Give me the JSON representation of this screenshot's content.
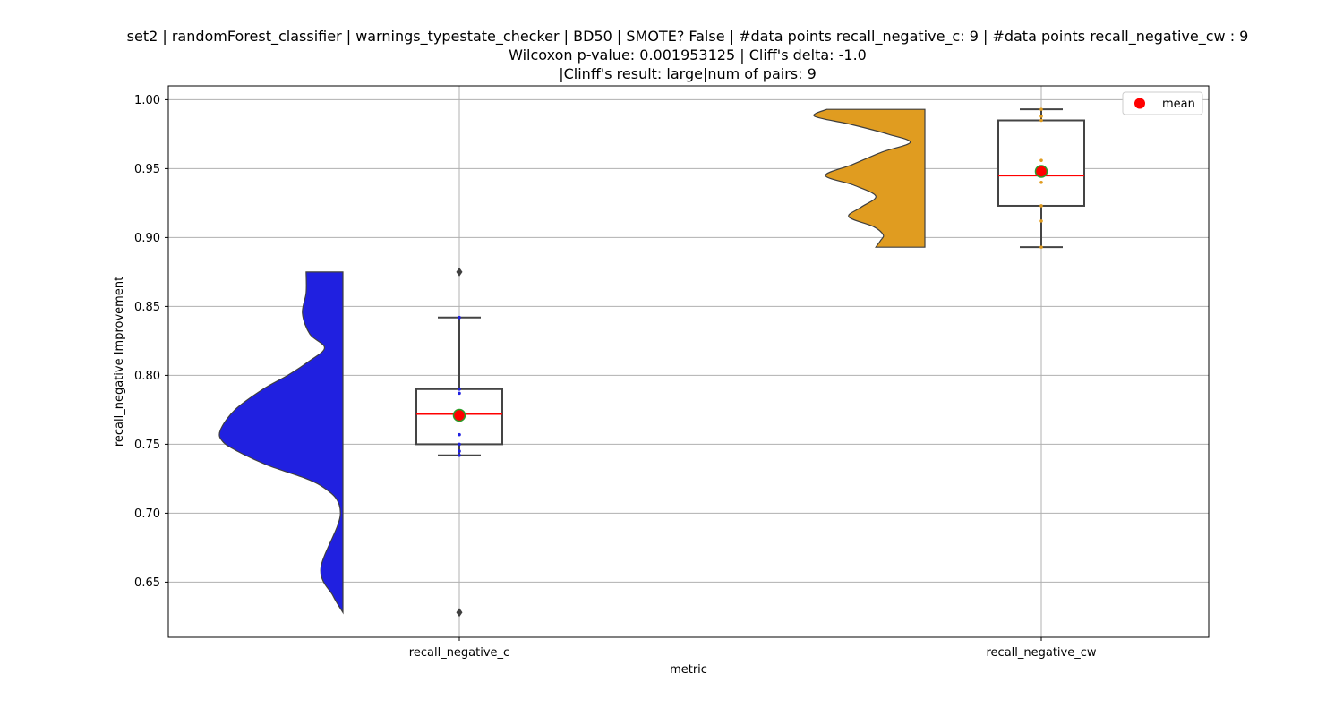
{
  "chart_data": {
    "type": "violin",
    "title_lines": [
      "set2 | randomForest_classifier | warnings_typestate_checker | BD50 | SMOTE? False | #data points recall_negative_c: 9 | #data points recall_negative_cw : 9",
      "Wilcoxon p-value: 0.001953125 | Cliff's delta: -1.0",
      "|Clinff's result: large|num of pairs: 9"
    ],
    "xlabel": "metric",
    "ylabel": "recall_negative Improvement",
    "ylim": [
      0.61,
      1.01
    ],
    "yticks": [
      "0.65",
      "0.70",
      "0.75",
      "0.80",
      "0.85",
      "0.90",
      "0.95",
      "1.00"
    ],
    "categories": [
      "recall_negative_c",
      "recall_negative_cw"
    ],
    "grid": true,
    "legend": {
      "placement": "top-right",
      "entries": [
        {
          "label": "mean",
          "color": "#ff0000"
        }
      ]
    },
    "series": [
      {
        "category": "recall_negative_c",
        "color": "#2020e0",
        "violin_range": [
          0.628,
          0.875
        ],
        "density": [
          [
            0.628,
            0.0
          ],
          [
            0.64,
            0.08
          ],
          [
            0.66,
            0.18
          ],
          [
            0.7,
            0.02
          ],
          [
            0.72,
            0.18
          ],
          [
            0.735,
            0.62
          ],
          [
            0.745,
            0.86
          ],
          [
            0.752,
            0.98
          ],
          [
            0.76,
            1.0
          ],
          [
            0.775,
            0.88
          ],
          [
            0.79,
            0.65
          ],
          [
            0.8,
            0.45
          ],
          [
            0.81,
            0.28
          ],
          [
            0.82,
            0.15
          ],
          [
            0.83,
            0.27
          ],
          [
            0.845,
            0.33
          ],
          [
            0.86,
            0.3
          ],
          [
            0.875,
            0.3
          ]
        ],
        "box": {
          "whisker_low": 0.742,
          "q1": 0.75,
          "median": 0.772,
          "q3": 0.79,
          "whisker_high": 0.842
        },
        "mean": 0.771,
        "outliers": [
          0.875,
          0.628
        ],
        "points": [
          0.742,
          0.745,
          0.75,
          0.757,
          0.772,
          0.787,
          0.79,
          0.842
        ]
      },
      {
        "category": "recall_negative_cw",
        "color": "#e09c20",
        "violin_range": [
          0.893,
          0.993
        ],
        "density": [
          [
            0.893,
            0.4
          ],
          [
            0.898,
            0.36
          ],
          [
            0.902,
            0.34
          ],
          [
            0.908,
            0.42
          ],
          [
            0.915,
            0.62
          ],
          [
            0.922,
            0.52
          ],
          [
            0.93,
            0.4
          ],
          [
            0.938,
            0.58
          ],
          [
            0.945,
            0.81
          ],
          [
            0.953,
            0.59
          ],
          [
            0.962,
            0.35
          ],
          [
            0.969,
            0.12
          ],
          [
            0.975,
            0.3
          ],
          [
            0.982,
            0.6
          ],
          [
            0.988,
            0.9
          ],
          [
            0.993,
            0.8
          ]
        ],
        "box": {
          "whisker_low": 0.893,
          "q1": 0.923,
          "median": 0.945,
          "q3": 0.985,
          "whisker_high": 0.993
        },
        "mean": 0.948,
        "outliers": [],
        "points": [
          0.893,
          0.912,
          0.923,
          0.94,
          0.945,
          0.956,
          0.985,
          0.988,
          0.993
        ]
      }
    ]
  }
}
